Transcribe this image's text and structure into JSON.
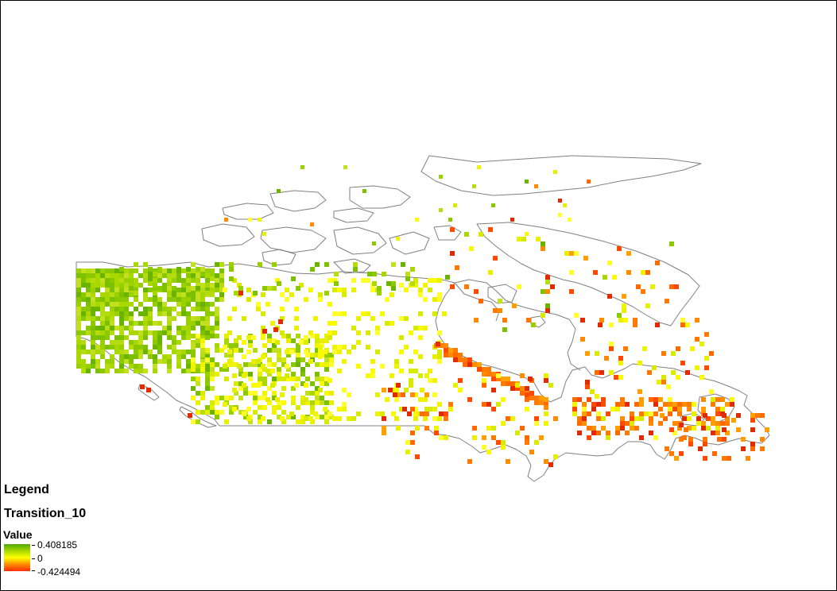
{
  "legend": {
    "title": "Legend",
    "layer": "Transition_10",
    "field": "Value",
    "max_label": "0.408185",
    "mid_label": "0",
    "min_label": "-0.424494"
  },
  "map": {
    "region": "Canada",
    "outline_color": "#808080",
    "ramp_colors": [
      "#4ea800",
      "#a8d800",
      "#ffff00",
      "#ff8c00",
      "#ff2a00"
    ]
  }
}
